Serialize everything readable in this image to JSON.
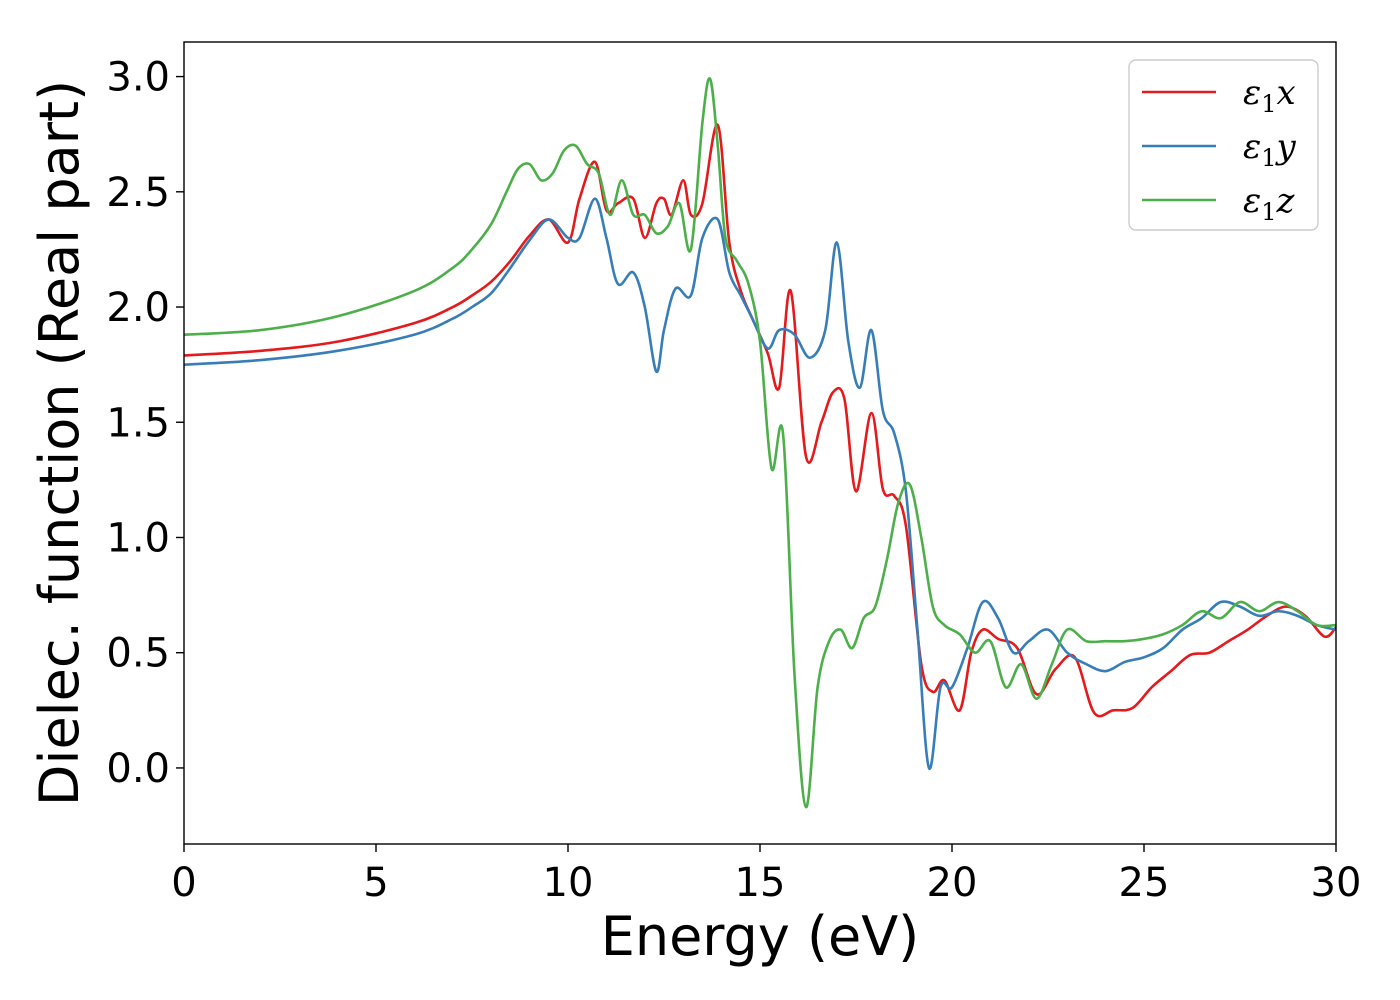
{
  "chart_data": {
    "type": "line",
    "title": "",
    "xlabel": "Energy (eV)",
    "ylabel": "Dielec. function (Real part)",
    "xlim": [
      0,
      30
    ],
    "ylim": [
      -0.33,
      3.15
    ],
    "xticks": [
      0,
      5,
      10,
      15,
      20,
      25,
      30
    ],
    "xtick_labels": [
      "0",
      "5",
      "10",
      "15",
      "20",
      "25",
      "30"
    ],
    "yticks": [
      0.0,
      0.5,
      1.0,
      1.5,
      2.0,
      2.5,
      3.0
    ],
    "ytick_labels": [
      "0.0",
      "0.5",
      "1.0",
      "1.5",
      "2.0",
      "2.5",
      "3.0"
    ],
    "grid": false,
    "legend_position": "top-right",
    "series": [
      {
        "name": "ε₁x",
        "legend_main": "ε",
        "legend_sub": "1",
        "legend_tail": "x",
        "color": "#e41a1c",
        "x": [
          0,
          2,
          4,
          6,
          7,
          7.5,
          8,
          8.5,
          9,
          9.5,
          10,
          10.3,
          10.7,
          11,
          11.3,
          11.7,
          12,
          12.3,
          12.5,
          12.7,
          13,
          13.2,
          13.5,
          13.9,
          14.2,
          14.5,
          14.8,
          15.2,
          15.5,
          15.8,
          16.2,
          16.6,
          16.9,
          17.2,
          17.5,
          17.9,
          18.2,
          18.5,
          18.8,
          19.2,
          19.5,
          19.8,
          20.2,
          20.5,
          20.8,
          21.2,
          21.7,
          22.2,
          22.7,
          23.2,
          23.7,
          24.2,
          24.7,
          25.2,
          25.7,
          26.2,
          26.7,
          27.2,
          27.7,
          28.2,
          28.7,
          29.2,
          29.7,
          30
        ],
        "y": [
          1.79,
          1.81,
          1.85,
          1.93,
          2.0,
          2.05,
          2.11,
          2.2,
          2.31,
          2.38,
          2.28,
          2.47,
          2.63,
          2.42,
          2.45,
          2.47,
          2.3,
          2.45,
          2.47,
          2.4,
          2.55,
          2.4,
          2.45,
          2.79,
          2.28,
          2.07,
          1.95,
          1.8,
          1.65,
          2.07,
          1.35,
          1.5,
          1.63,
          1.6,
          1.2,
          1.54,
          1.21,
          1.18,
          1.05,
          0.45,
          0.33,
          0.38,
          0.25,
          0.5,
          0.6,
          0.56,
          0.52,
          0.32,
          0.43,
          0.48,
          0.24,
          0.25,
          0.26,
          0.35,
          0.42,
          0.49,
          0.5,
          0.55,
          0.6,
          0.66,
          0.7,
          0.66,
          0.57,
          0.61
        ]
      },
      {
        "name": "ε₁y",
        "legend_main": "ε",
        "legend_sub": "1",
        "legend_tail": "y",
        "color": "#377eb8",
        "x": [
          0,
          2,
          4,
          6,
          7,
          7.5,
          8,
          8.5,
          9,
          9.5,
          10,
          10.3,
          10.7,
          11,
          11.3,
          11.7,
          12,
          12.3,
          12.5,
          12.8,
          13.2,
          13.5,
          13.9,
          14.2,
          14.5,
          14.8,
          15.2,
          15.5,
          15.9,
          16.3,
          16.7,
          17.0,
          17.3,
          17.6,
          17.9,
          18.2,
          18.5,
          18.8,
          19.1,
          19.4,
          19.7,
          20.0,
          20.4,
          20.8,
          21.2,
          21.6,
          22.0,
          22.5,
          23.0,
          23.5,
          24.0,
          24.5,
          25.0,
          25.5,
          26.0,
          26.5,
          27.0,
          27.5,
          28.0,
          28.5,
          29.0,
          29.5,
          30
        ],
        "y": [
          1.75,
          1.77,
          1.81,
          1.88,
          1.95,
          2.0,
          2.06,
          2.17,
          2.29,
          2.38,
          2.3,
          2.3,
          2.47,
          2.3,
          2.1,
          2.15,
          2.0,
          1.72,
          1.9,
          2.08,
          2.05,
          2.3,
          2.38,
          2.15,
          2.05,
          1.95,
          1.82,
          1.9,
          1.88,
          1.78,
          1.9,
          2.28,
          1.85,
          1.65,
          1.9,
          1.55,
          1.45,
          1.2,
          0.6,
          0.0,
          0.35,
          0.35,
          0.52,
          0.72,
          0.65,
          0.5,
          0.55,
          0.6,
          0.5,
          0.45,
          0.42,
          0.46,
          0.48,
          0.52,
          0.6,
          0.65,
          0.72,
          0.7,
          0.66,
          0.68,
          0.66,
          0.62,
          0.6
        ]
      },
      {
        "name": "ε₁z",
        "legend_main": "ε",
        "legend_sub": "1",
        "legend_tail": "z",
        "color": "#4daf4a",
        "x": [
          0,
          2,
          4,
          6,
          7,
          7.5,
          8,
          8.4,
          8.7,
          9.0,
          9.3,
          9.6,
          9.9,
          10.2,
          10.5,
          10.8,
          11.1,
          11.4,
          11.7,
          12.0,
          12.3,
          12.6,
          12.9,
          13.2,
          13.5,
          13.7,
          13.9,
          14.1,
          14.4,
          14.7,
          15.0,
          15.3,
          15.6,
          15.9,
          16.2,
          16.5,
          16.8,
          17.1,
          17.4,
          17.7,
          18.0,
          18.3,
          18.6,
          18.9,
          19.2,
          19.5,
          19.8,
          20.2,
          20.6,
          21.0,
          21.4,
          21.8,
          22.2,
          22.6,
          23.0,
          23.5,
          24.0,
          24.5,
          25.0,
          25.5,
          26.0,
          26.5,
          27.0,
          27.5,
          28.0,
          28.5,
          29.0,
          29.5,
          30
        ],
        "y": [
          1.88,
          1.9,
          1.96,
          2.07,
          2.17,
          2.25,
          2.36,
          2.5,
          2.6,
          2.62,
          2.55,
          2.58,
          2.68,
          2.7,
          2.62,
          2.58,
          2.4,
          2.55,
          2.4,
          2.4,
          2.32,
          2.35,
          2.45,
          2.25,
          2.8,
          2.99,
          2.7,
          2.3,
          2.2,
          2.1,
          1.85,
          1.3,
          1.45,
          0.4,
          -0.17,
          0.35,
          0.55,
          0.6,
          0.52,
          0.65,
          0.7,
          0.9,
          1.15,
          1.23,
          1.0,
          0.7,
          0.62,
          0.58,
          0.5,
          0.55,
          0.35,
          0.45,
          0.3,
          0.45,
          0.6,
          0.55,
          0.55,
          0.55,
          0.56,
          0.58,
          0.62,
          0.68,
          0.65,
          0.72,
          0.68,
          0.72,
          0.68,
          0.62,
          0.62
        ]
      }
    ]
  }
}
